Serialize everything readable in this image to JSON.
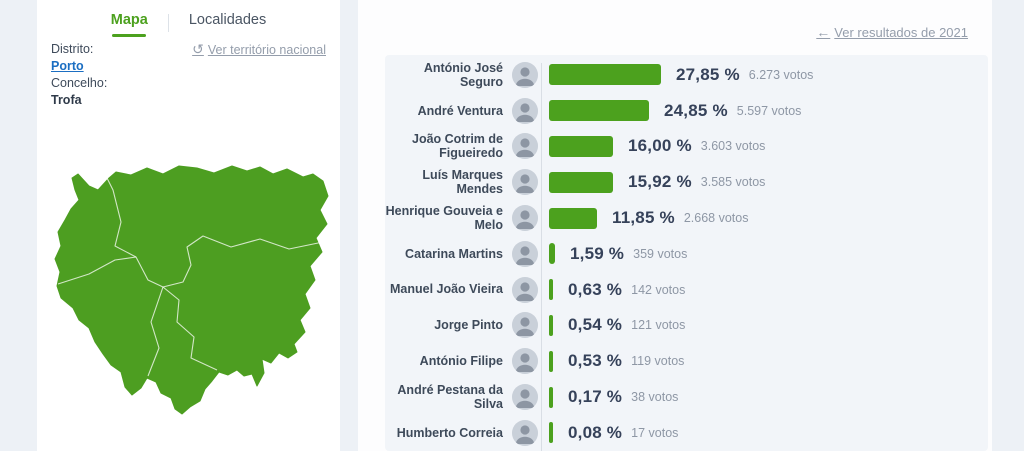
{
  "left_panel": {
    "tabs": [
      {
        "label": "Mapa",
        "active": true
      },
      {
        "label": "Localidades",
        "active": false
      }
    ],
    "district_label": "Distrito:",
    "district_value": "Porto",
    "municipality_label": "Concelho:",
    "municipality_value": "Trofa",
    "national_link": "Ver território nacional"
  },
  "results_header": {
    "back_link": "Ver resultados de 2021"
  },
  "chart_data": {
    "type": "bar",
    "orientation": "horizontal",
    "title": "",
    "xlabel": "",
    "ylabel": "",
    "xlim": [
      0,
      30
    ],
    "grid": false,
    "bar_color": "#4ca11e",
    "categories": [
      "António José Seguro",
      "André Ventura",
      "João Cotrim de Figueiredo",
      "Luís Marques Mendes",
      "Henrique Gouveia e Melo",
      "Catarina Martins",
      "Manuel João Vieira",
      "Jorge Pinto",
      "António Filipe",
      "André Pestana da Silva",
      "Humberto Correia"
    ],
    "values": [
      27.85,
      24.85,
      16.0,
      15.92,
      11.85,
      1.59,
      0.63,
      0.54,
      0.53,
      0.17,
      0.08
    ],
    "candidates": [
      {
        "name": "António José Seguro",
        "value": 27.85,
        "percent": "27,85 %",
        "votes": "6.273 votos"
      },
      {
        "name": "André Ventura",
        "value": 24.85,
        "percent": "24,85 %",
        "votes": "5.597 votos"
      },
      {
        "name": "João Cotrim de Figueiredo",
        "value": 16.0,
        "percent": "16,00 %",
        "votes": "3.603 votos"
      },
      {
        "name": "Luís Marques Mendes",
        "value": 15.92,
        "percent": "15,92 %",
        "votes": "3.585 votos"
      },
      {
        "name": "Henrique Gouveia e Melo",
        "value": 11.85,
        "percent": "11,85 %",
        "votes": "2.668 votos"
      },
      {
        "name": "Catarina Martins",
        "value": 1.59,
        "percent": "1,59 %",
        "votes": "359 votos"
      },
      {
        "name": "Manuel João Vieira",
        "value": 0.63,
        "percent": "0,63 %",
        "votes": "142 votos"
      },
      {
        "name": "Jorge Pinto",
        "value": 0.54,
        "percent": "0,54 %",
        "votes": "121 votos"
      },
      {
        "name": "António Filipe",
        "value": 0.53,
        "percent": "0,53 %",
        "votes": "119 votos"
      },
      {
        "name": "André Pestana da Silva",
        "value": 0.17,
        "percent": "0,17 %",
        "votes": "38 votos"
      },
      {
        "name": "Humberto Correia",
        "value": 0.08,
        "percent": "0,08 %",
        "votes": "17 votos"
      }
    ]
  },
  "icons": {
    "reset_icon": "↺",
    "back_arrow_icon": "←"
  },
  "colors": {
    "accent_green": "#4ca11e",
    "map_green": "#4d9e21",
    "link_blue": "#1b6ec2",
    "gray_link": "#949dab",
    "page_background": "#edf1f6",
    "panel_background": "#f2f5f9"
  }
}
